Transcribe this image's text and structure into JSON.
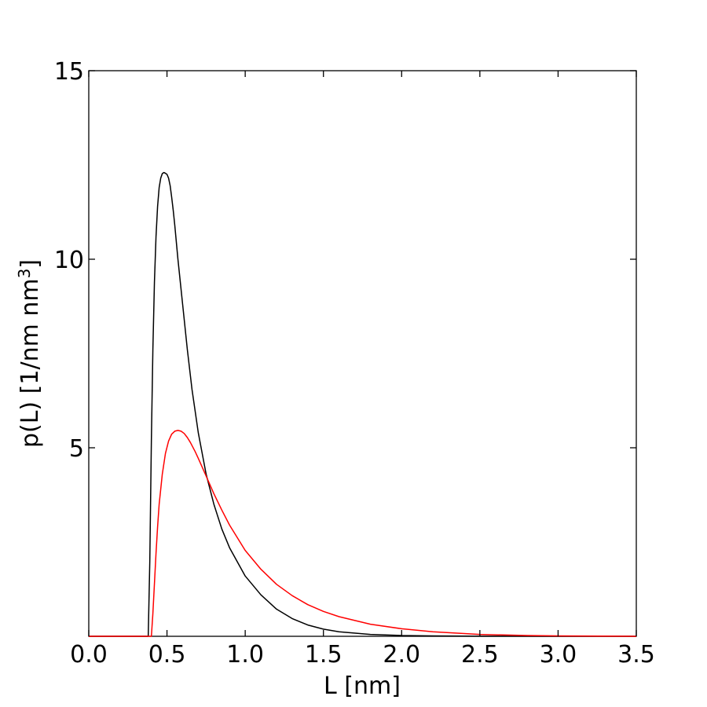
{
  "chart_data": {
    "type": "line",
    "xlabel": "L [nm]",
    "ylabel": "p(L) [1/nm nm³]",
    "xlim": [
      0.0,
      3.5
    ],
    "ylim": [
      0,
      15
    ],
    "x_ticks": [
      "0.0",
      "0.5",
      "1.0",
      "1.5",
      "2.0",
      "2.5",
      "3.0",
      "3.5"
    ],
    "y_ticks": [
      "5",
      "10",
      "15"
    ],
    "x_minor_ticks": [
      0.0,
      0.5,
      1.0,
      1.5,
      2.0,
      2.5,
      3.0,
      3.5
    ],
    "grid": false,
    "series": [
      {
        "color": "#000000",
        "x": [
          0.0,
          0.37,
          0.38,
          0.39,
          0.4,
          0.41,
          0.42,
          0.43,
          0.44,
          0.45,
          0.46,
          0.47,
          0.48,
          0.49,
          0.5,
          0.51,
          0.52,
          0.53,
          0.54,
          0.55,
          0.57,
          0.6,
          0.63,
          0.66,
          0.7,
          0.75,
          0.8,
          0.85,
          0.9,
          1.0,
          1.1,
          1.2,
          1.3,
          1.4,
          1.5,
          1.6,
          1.8,
          2.0,
          2.2,
          2.5,
          3.0,
          3.5
        ],
        "values": [
          0.0,
          0.0,
          0.0,
          2.0,
          5.2,
          7.6,
          9.4,
          10.6,
          11.4,
          11.9,
          12.15,
          12.27,
          12.3,
          12.28,
          12.25,
          12.15,
          11.95,
          11.65,
          11.3,
          10.9,
          10.0,
          8.8,
          7.6,
          6.55,
          5.4,
          4.3,
          3.5,
          2.85,
          2.35,
          1.6,
          1.1,
          0.72,
          0.47,
          0.3,
          0.19,
          0.12,
          0.05,
          0.02,
          0.01,
          0.003,
          0.0,
          0.0
        ]
      },
      {
        "color": "#ff0000",
        "x": [
          0.0,
          0.4,
          0.41,
          0.42,
          0.43,
          0.44,
          0.45,
          0.47,
          0.49,
          0.51,
          0.53,
          0.55,
          0.57,
          0.59,
          0.61,
          0.63,
          0.65,
          0.68,
          0.7,
          0.75,
          0.8,
          0.85,
          0.9,
          1.0,
          1.1,
          1.2,
          1.3,
          1.4,
          1.5,
          1.6,
          1.8,
          2.0,
          2.2,
          2.5,
          2.8,
          3.0,
          3.5
        ],
        "values": [
          0.0,
          0.0,
          0.6,
          1.4,
          2.2,
          2.9,
          3.5,
          4.3,
          4.85,
          5.18,
          5.36,
          5.44,
          5.46,
          5.44,
          5.38,
          5.27,
          5.14,
          4.9,
          4.72,
          4.25,
          3.78,
          3.35,
          2.95,
          2.28,
          1.78,
          1.38,
          1.08,
          0.84,
          0.66,
          0.52,
          0.32,
          0.2,
          0.12,
          0.05,
          0.02,
          0.01,
          0.0
        ]
      }
    ]
  }
}
